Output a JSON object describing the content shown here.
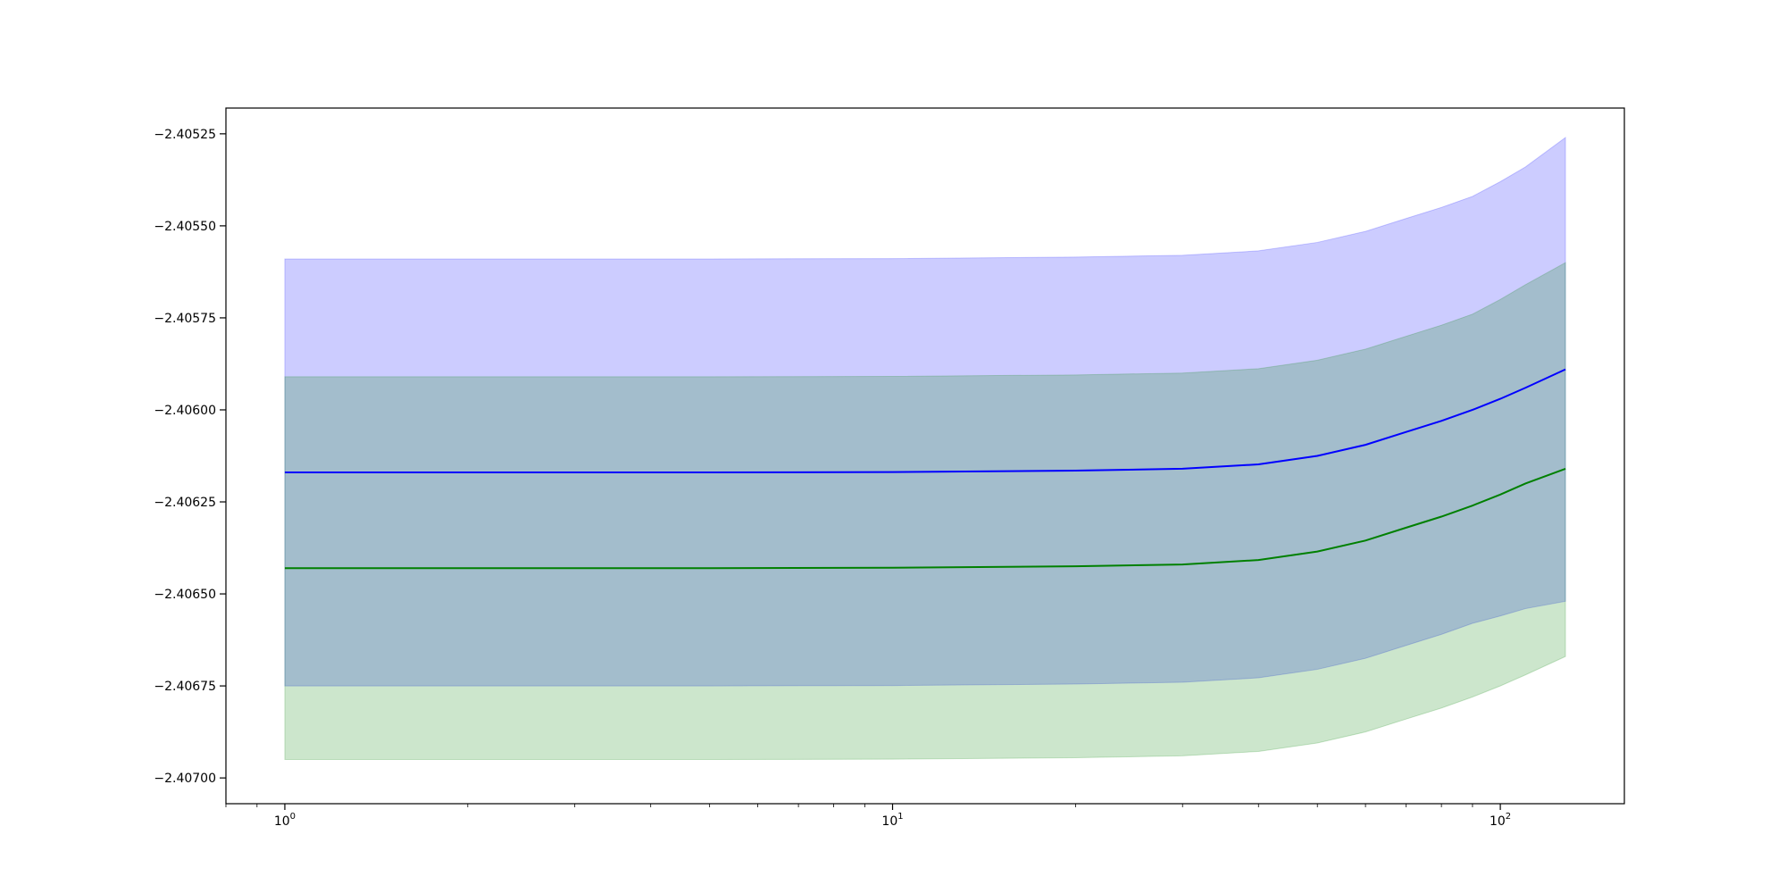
{
  "chart_data": {
    "type": "area",
    "title": "",
    "xlabel": "",
    "ylabel": "",
    "xscale": "log",
    "xlim": [
      0.8,
      160
    ],
    "ylim": [
      -2.40707,
      -2.40518
    ],
    "grid": false,
    "legend": "none",
    "x_ticks": [
      {
        "base": "10",
        "exp": "0",
        "value": 1
      },
      {
        "base": "10",
        "exp": "1",
        "value": 10
      },
      {
        "base": "10",
        "exp": "2",
        "value": 100
      }
    ],
    "y_ticks": [
      {
        "label": "−2.40525",
        "value": -2.40525
      },
      {
        "label": "−2.40550",
        "value": -2.4055
      },
      {
        "label": "−2.40575",
        "value": -2.40575
      },
      {
        "label": "−2.40600",
        "value": -2.406
      },
      {
        "label": "−2.40625",
        "value": -2.40625
      },
      {
        "label": "−2.40650",
        "value": -2.4065
      },
      {
        "label": "−2.40675",
        "value": -2.40675
      },
      {
        "label": "−2.40700",
        "value": -2.407
      }
    ],
    "x": [
      1,
      5,
      10,
      20,
      30,
      40,
      50,
      60,
      70,
      80,
      90,
      100,
      110,
      128
    ],
    "series": [
      {
        "color": "#0000ff",
        "band_color": "#0000ff",
        "band_opacity": 0.2,
        "values": [
          -2.40617,
          -2.40617,
          -2.406169,
          -2.406165,
          -2.40616,
          -2.406148,
          -2.406125,
          -2.406095,
          -2.40606,
          -2.40603,
          -2.406,
          -2.40597,
          -2.40594,
          -2.40589
        ],
        "upper": [
          -2.40559,
          -2.40559,
          -2.405589,
          -2.405585,
          -2.40558,
          -2.405568,
          -2.405545,
          -2.405515,
          -2.40548,
          -2.40545,
          -2.40542,
          -2.40538,
          -2.40534,
          -2.40526
        ],
        "lower": [
          -2.40675,
          -2.40675,
          -2.406749,
          -2.406745,
          -2.40674,
          -2.406728,
          -2.406705,
          -2.406675,
          -2.40664,
          -2.40661,
          -2.40658,
          -2.40656,
          -2.40654,
          -2.40652
        ]
      },
      {
        "color": "#008000",
        "band_color": "#008000",
        "band_opacity": 0.2,
        "values": [
          -2.40643,
          -2.40643,
          -2.406429,
          -2.406425,
          -2.40642,
          -2.406408,
          -2.406385,
          -2.406355,
          -2.40632,
          -2.40629,
          -2.40626,
          -2.40623,
          -2.4062,
          -2.40616
        ],
        "upper": [
          -2.40591,
          -2.40591,
          -2.405909,
          -2.405905,
          -2.4059,
          -2.405888,
          -2.405865,
          -2.405835,
          -2.4058,
          -2.40577,
          -2.40574,
          -2.4057,
          -2.40566,
          -2.4056
        ],
        "lower": [
          -2.40695,
          -2.40695,
          -2.406949,
          -2.406945,
          -2.40694,
          -2.406928,
          -2.406905,
          -2.406875,
          -2.40684,
          -2.40681,
          -2.40678,
          -2.40675,
          -2.40672,
          -2.40667
        ]
      }
    ]
  }
}
